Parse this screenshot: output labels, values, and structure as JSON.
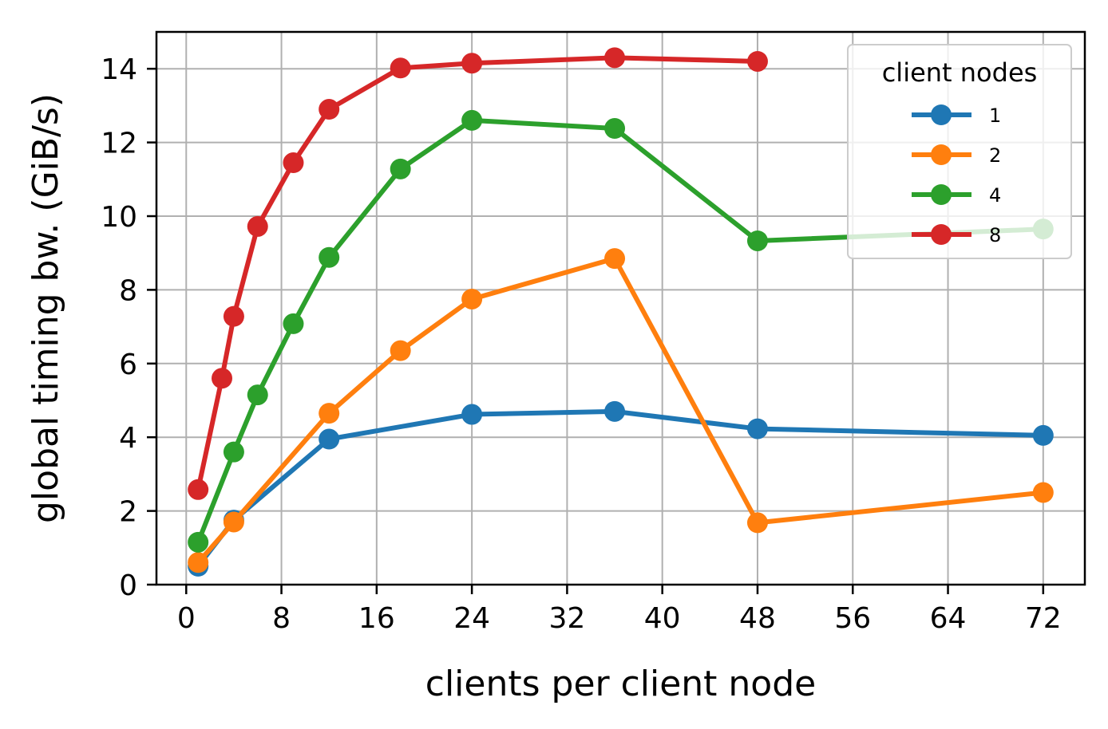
{
  "chart_data": {
    "type": "line",
    "title": "",
    "xlabel": "clients per client node",
    "ylabel": "global timing bw. (GiB/s)",
    "xlim": [
      -2.5,
      75.5
    ],
    "ylim": [
      0,
      15
    ],
    "xticks": [
      0,
      8,
      16,
      24,
      32,
      40,
      48,
      56,
      64,
      72
    ],
    "yticks": [
      0,
      2,
      4,
      6,
      8,
      10,
      12,
      14
    ],
    "grid": true,
    "legend": {
      "title": "client nodes",
      "placement": "top-right"
    },
    "series": [
      {
        "name": "1",
        "color": "#1f77b4",
        "x": [
          1,
          4,
          12,
          24,
          36,
          48,
          72
        ],
        "y": [
          0.5,
          1.75,
          3.95,
          4.62,
          4.7,
          4.23,
          4.05
        ]
      },
      {
        "name": "2",
        "color": "#ff7f0e",
        "x": [
          1,
          4,
          12,
          18,
          24,
          36,
          48,
          72
        ],
        "y": [
          0.6,
          1.7,
          4.65,
          6.35,
          7.75,
          8.85,
          1.68,
          2.5
        ]
      },
      {
        "name": "4",
        "color": "#2ca02c",
        "x": [
          1,
          4,
          6,
          9,
          12,
          18,
          24,
          36,
          48,
          72
        ],
        "y": [
          1.15,
          3.6,
          5.15,
          7.08,
          8.88,
          11.28,
          12.6,
          12.38,
          9.33,
          9.65
        ]
      },
      {
        "name": "8",
        "color": "#d62728",
        "x": [
          1,
          3,
          4,
          6,
          9,
          12,
          18,
          24,
          36,
          48
        ],
        "y": [
          2.58,
          5.6,
          7.28,
          9.72,
          11.45,
          12.9,
          14.02,
          14.15,
          14.3,
          14.2
        ]
      }
    ]
  }
}
